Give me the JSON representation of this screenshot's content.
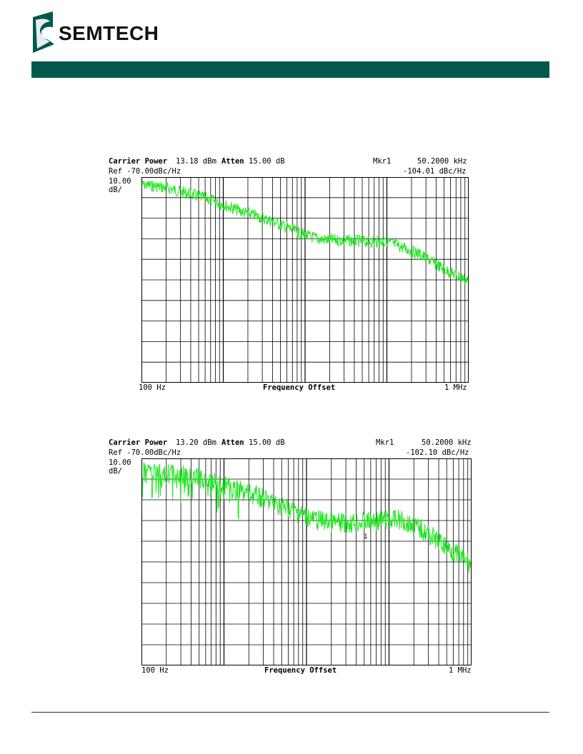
{
  "brand": {
    "name": "SEMTECH",
    "bar_color": "#00594c"
  },
  "trace_color": "#22e622",
  "plots": [
    {
      "header": {
        "carrier_label": "Carrier Power",
        "carrier_value": "13.18 dBm",
        "atten_label": "Atten",
        "atten_value": "15.00 dB",
        "mkr_label": "Mkr1",
        "mkr_freq": "50.2000 kHz",
        "ref": "Ref -70.00dBc/Hz",
        "mkr_level": "-104.01 dBc/Hz",
        "scale_value": "10.00",
        "scale_unit": "dB/"
      },
      "xaxis": {
        "start": "100 Hz",
        "label": "Frequency Offset",
        "stop": "1 MHz"
      },
      "show_marker": false
    },
    {
      "header": {
        "carrier_label": "Carrier Power",
        "carrier_value": "13.20 dBm",
        "atten_label": "Atten",
        "atten_value": "15.00 dB",
        "mkr_label": "Mkr1",
        "mkr_freq": "50.2000 kHz",
        "ref": "Ref -70.00dBc/Hz",
        "mkr_level": "-102.10 dBc/Hz",
        "scale_value": "10.00",
        "scale_unit": "dB/"
      },
      "xaxis": {
        "start": "100 Hz",
        "label": "Frequency Offset",
        "stop": "1 MHz"
      },
      "show_marker": true,
      "marker_label": "1"
    }
  ]
}
